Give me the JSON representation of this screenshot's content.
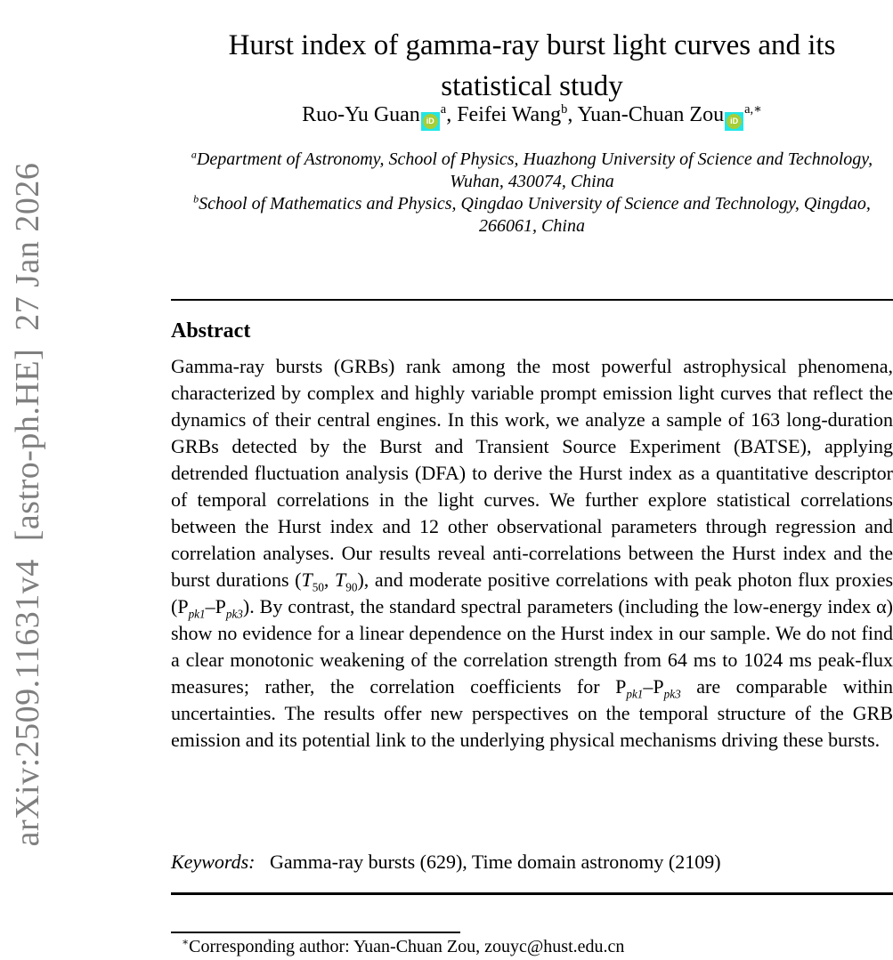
{
  "colors": {
    "orcid_green": "#A6CE39",
    "link_cyan": "#22E6E6",
    "sidebar_gray": "#7F7F7F"
  },
  "watermark": {
    "text": "arXiv:2509.11631v4  [astro-ph.HE]  27 Jan 2026"
  },
  "title": "Hurst index of gamma-ray burst light curves and its statistical study",
  "authors": {
    "segments": [
      {
        "t": "Ruo-Yu Guan"
      },
      {
        "t": "iD",
        "s": "orcid"
      },
      {
        "t": "a",
        "s": "sup"
      },
      {
        "t": ", Feifei Wang"
      },
      {
        "t": "b",
        "s": "sup"
      },
      {
        "t": ", Yuan-Chuan Zou"
      },
      {
        "t": "iD",
        "s": "orcid"
      },
      {
        "t": "a,∗",
        "s": "sup"
      }
    ]
  },
  "affiliations": [
    {
      "segments": [
        {
          "t": "a",
          "s": "sup"
        },
        {
          "t": "Department of Astronomy, School of Physics, Huazhong University of Science and Technology, Wuhan, 430074, China"
        }
      ]
    },
    {
      "segments": [
        {
          "t": "b",
          "s": "sup"
        },
        {
          "t": "School of Mathematics and Physics, Qingdao University of Science and Technology, Qingdao, 266061, China"
        }
      ]
    }
  ],
  "abstract": {
    "heading": "Abstract",
    "segments": [
      {
        "t": "Gamma-ray bursts (GRBs) rank among the most powerful astrophysical phenomena, characterized by complex and highly variable prompt emission light curves that reflect the dynamics of their central engines. In this work, we analyze a sample of 163 long-duration GRBs detected by the Burst and Transient Source Experiment (BATSE), applying detrended fluctuation analysis (DFA) to derive the Hurst index as a quantitative descriptor of temporal correlations in the light curves. We further explore statistical correlations between the Hurst index and 12 other observational parameters through regression and correlation analyses. Our results reveal anti-correlations between the Hurst index and the burst durations ("
      },
      {
        "t": "T",
        "s": "i"
      },
      {
        "t": "50",
        "s": "sub"
      },
      {
        "t": ", "
      },
      {
        "t": "T",
        "s": "i"
      },
      {
        "t": "90",
        "s": "sub"
      },
      {
        "t": "), and moderate positive correlations with peak photon flux proxies (P"
      },
      {
        "t": "pk1",
        "s": "sub-i"
      },
      {
        "t": "–P"
      },
      {
        "t": "pk3",
        "s": "sub-i"
      },
      {
        "t": "). By contrast, the standard spectral parameters (including the low-energy index α) show no evidence for a linear dependence on the Hurst index in our sample. We do not find a clear monotonic weakening of the correlation strength from 64 ms to 1024 ms peak-flux measures; rather, the correlation coefficients for P"
      },
      {
        "t": "pk1",
        "s": "sub-i"
      },
      {
        "t": "–P"
      },
      {
        "t": "pk3",
        "s": "sub-i"
      },
      {
        "t": " are comparable within uncertainties. The results offer new perspectives on the temporal structure of the GRB emission and its potential link to the underlying physical mechanisms driving these bursts."
      }
    ]
  },
  "keywords": {
    "segments": [
      {
        "t": "Keywords:",
        "s": "i"
      },
      {
        "t": "   Gamma-ray bursts (629), Time domain astronomy (2109)"
      }
    ]
  },
  "footnote": {
    "segments": [
      {
        "t": "∗",
        "s": "sup"
      },
      {
        "t": "Corresponding author: Yuan-Chuan Zou, zouyc@hust.edu.cn"
      }
    ]
  }
}
